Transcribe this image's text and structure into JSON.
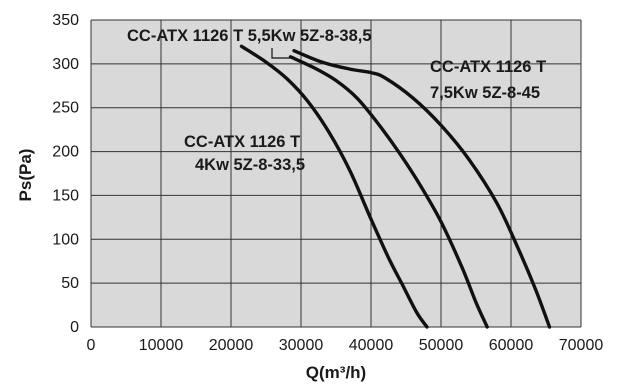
{
  "chart_data": {
    "type": "line",
    "title": "",
    "xlabel": "Q(m³/h)",
    "ylabel": "Ps(Pa)",
    "xlim": [
      0,
      70000
    ],
    "ylim": [
      0,
      350
    ],
    "x_ticks": [
      "0",
      "10000",
      "20000",
      "30000",
      "40000",
      "50000",
      "60000",
      "70000"
    ],
    "y_ticks": [
      "0",
      "50",
      "100",
      "150",
      "200",
      "250",
      "300",
      "350"
    ],
    "grid": true,
    "plot_background": "#d9d9d9",
    "line_color": "#111111",
    "series": [
      {
        "name": "CC-ATX 1126 T 4Kw 5Z-8-33,5",
        "label_lines": [
          "CC-ATX 1126 T",
          "4Kw 5Z-8-33,5"
        ],
        "x": [
          21500,
          25000,
          28000,
          31000,
          34000,
          37000,
          40000,
          42500,
          44500,
          46500,
          48000
        ],
        "y": [
          320,
          302,
          283,
          257,
          222,
          178,
          123,
          79,
          48,
          17,
          0
        ]
      },
      {
        "name": "CC-ATX 1126 T 5,5Kw 5Z-8-38,5",
        "label_lines": [
          "CC-ATX 1126 T 5,5Kw 5Z-8-38,5"
        ],
        "x": [
          28500,
          32000,
          35000,
          38000,
          41000,
          44000,
          47000,
          50000,
          53000,
          55000,
          56600
        ],
        "y": [
          308,
          295,
          281,
          261,
          232,
          199,
          162,
          120,
          68,
          28,
          0
        ]
      },
      {
        "name": "CC-ATX 1126 T 7,5Kw 5Z-8-45",
        "label_lines": [
          "CC-ATX 1126 T",
          "7,5Kw 5Z-8-45"
        ],
        "x": [
          29000,
          33000,
          37000,
          40000,
          42000,
          46000,
          50000,
          54000,
          58000,
          61000,
          63500,
          65500
        ],
        "y": [
          315,
          302,
          294,
          290,
          284,
          261,
          230,
          191,
          141,
          90,
          43,
          0
        ]
      }
    ]
  }
}
